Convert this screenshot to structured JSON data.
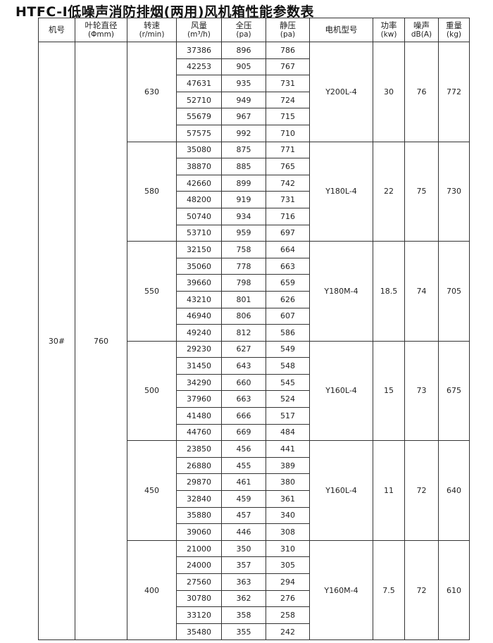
{
  "title": "HTFC-Ⅰ低噪声消防排烟(两用)风机箱性能参数表",
  "headers": {
    "model": {
      "label": "机号",
      "unit": ""
    },
    "diameter": {
      "label": "叶轮直径",
      "unit": "(Φmm)"
    },
    "speed": {
      "label": "转速",
      "unit": "(r/min)"
    },
    "flow": {
      "label": "风量",
      "unit": "(m³/h)"
    },
    "total_pressure": {
      "label": "全压",
      "unit": "(pa)"
    },
    "static_pressure": {
      "label": "静压",
      "unit": "(pa)"
    },
    "motor": {
      "label": "电机型号",
      "unit": ""
    },
    "power": {
      "label": "功率",
      "unit": "(kw)"
    },
    "noise": {
      "label": "噪声",
      "unit": "dB(A)"
    },
    "weight": {
      "label": "重量",
      "unit": "(kg)"
    }
  },
  "model": "30#",
  "diameter": "760",
  "groups": [
    {
      "speed": "630",
      "motor": "Y200L-4",
      "power": "30",
      "noise": "76",
      "weight": "772",
      "rows": [
        [
          "37386",
          "896",
          "786"
        ],
        [
          "42253",
          "905",
          "767"
        ],
        [
          "47631",
          "935",
          "731"
        ],
        [
          "52710",
          "949",
          "724"
        ],
        [
          "55679",
          "967",
          "715"
        ],
        [
          "57575",
          "992",
          "710"
        ]
      ]
    },
    {
      "speed": "580",
      "motor": "Y180L-4",
      "power": "22",
      "noise": "75",
      "weight": "730",
      "rows": [
        [
          "35080",
          "875",
          "771"
        ],
        [
          "38870",
          "885",
          "765"
        ],
        [
          "42660",
          "899",
          "742"
        ],
        [
          "48200",
          "919",
          "731"
        ],
        [
          "50740",
          "934",
          "716"
        ],
        [
          "53710",
          "959",
          "697"
        ]
      ]
    },
    {
      "speed": "550",
      "motor": "Y180M-4",
      "power": "18.5",
      "noise": "74",
      "weight": "705",
      "rows": [
        [
          "32150",
          "758",
          "664"
        ],
        [
          "35060",
          "778",
          "663"
        ],
        [
          "39660",
          "798",
          "659"
        ],
        [
          "43210",
          "801",
          "626"
        ],
        [
          "46940",
          "806",
          "607"
        ],
        [
          "49240",
          "812",
          "586"
        ]
      ]
    },
    {
      "speed": "500",
      "motor": "Y160L-4",
      "power": "15",
      "noise": "73",
      "weight": "675",
      "rows": [
        [
          "29230",
          "627",
          "549"
        ],
        [
          "31450",
          "643",
          "548"
        ],
        [
          "34290",
          "660",
          "545"
        ],
        [
          "37960",
          "663",
          "524"
        ],
        [
          "41480",
          "666",
          "517"
        ],
        [
          "44760",
          "669",
          "484"
        ]
      ]
    },
    {
      "speed": "450",
      "motor": "Y160L-4",
      "power": "11",
      "noise": "72",
      "weight": "640",
      "rows": [
        [
          "23850",
          "456",
          "441"
        ],
        [
          "26880",
          "455",
          "389"
        ],
        [
          "29870",
          "461",
          "380"
        ],
        [
          "32840",
          "459",
          "361"
        ],
        [
          "35880",
          "457",
          "340"
        ],
        [
          "39060",
          "446",
          "308"
        ]
      ]
    },
    {
      "speed": "400",
      "motor": "Y160M-4",
      "power": "7.5",
      "noise": "72",
      "weight": "610",
      "rows": [
        [
          "21000",
          "350",
          "310"
        ],
        [
          "24000",
          "357",
          "305"
        ],
        [
          "27560",
          "363",
          "294"
        ],
        [
          "30780",
          "362",
          "276"
        ],
        [
          "33120",
          "358",
          "258"
        ],
        [
          "35480",
          "355",
          "242"
        ]
      ]
    }
  ]
}
